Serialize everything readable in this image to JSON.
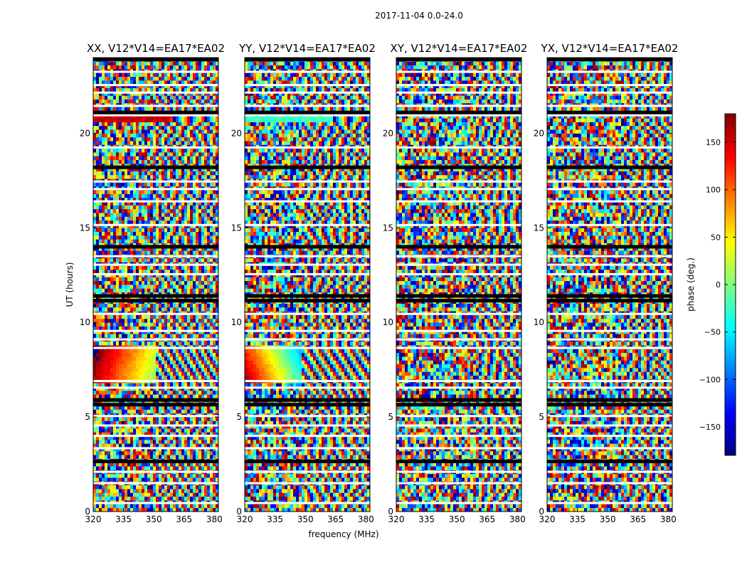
{
  "figure_title": "2017-11-04 0.0-24.0",
  "chart_data": {
    "type": "heatmap",
    "title": "2017-11-04 0.0-24.0",
    "xlabel": "frequency (MHz)",
    "ylabel": "UT (hours)",
    "xlim": [
      320,
      382
    ],
    "ylim": [
      0,
      24
    ],
    "x_ticks": [
      320,
      335,
      350,
      365,
      380
    ],
    "y_ticks": [
      0,
      5,
      10,
      15,
      20
    ],
    "panels": [
      {
        "title": "XX, V12*V14=EA17*EA02",
        "pattern": "xx"
      },
      {
        "title": "YY, V12*V14=EA17*EA02",
        "pattern": "yy"
      },
      {
        "title": "XY, V12*V14=EA17*EA02",
        "pattern": "noise"
      },
      {
        "title": "YX, V12*V14=EA17*EA02",
        "pattern": "noise"
      }
    ],
    "colorbar": {
      "label": "phase (deg.)",
      "range": [
        -180,
        180
      ],
      "ticks": [
        150,
        100,
        50,
        0,
        -50,
        -100,
        -150
      ],
      "tick_labels": [
        "150",
        "100",
        "50",
        "0",
        "−50",
        "−100",
        "−150"
      ],
      "colormap": "jet"
    },
    "flagged_rows_hours": [
      2.65,
      5.65,
      5.9,
      11.15,
      11.4,
      14.0,
      18.2,
      21.1,
      23.9
    ],
    "gap_rows_hours": [
      0.45,
      1.5,
      2.1,
      3.35,
      4.0,
      4.55,
      5.05,
      6.55,
      6.9,
      8.65,
      9.1,
      9.55,
      10.45,
      12.55,
      13.05,
      13.5,
      15.15,
      16.4,
      17.05,
      17.45,
      19.25,
      20.95,
      21.45,
      22.15,
      22.55,
      23.25
    ]
  }
}
